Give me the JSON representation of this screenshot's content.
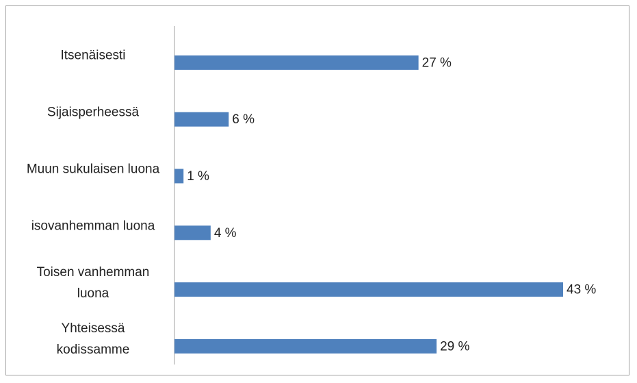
{
  "chart_data": {
    "type": "bar",
    "orientation": "horizontal",
    "categories": [
      "Itsenäisesti",
      "Sijaisperheessä",
      "Muun sukulaisen luona",
      "isovanhemman luona",
      "Toisen vanhemman luona",
      "Yhteisessä kodissamme"
    ],
    "values": [
      27,
      6,
      1,
      4,
      43,
      29
    ],
    "value_labels": [
      "27 %",
      "6 %",
      "1 %",
      "4 %",
      "43 %",
      "29 %"
    ],
    "color": "#4f81bd"
  }
}
